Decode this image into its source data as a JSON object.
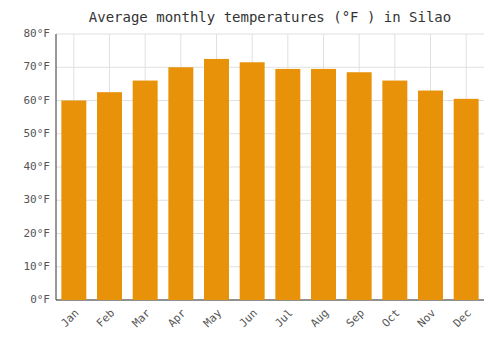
{
  "chart_data": {
    "type": "bar",
    "title": "Average monthly temperatures (°F ) in Silao",
    "categories": [
      "Jan",
      "Feb",
      "Mar",
      "Apr",
      "May",
      "Jun",
      "Jul",
      "Aug",
      "Sep",
      "Oct",
      "Nov",
      "Dec"
    ],
    "values": [
      60,
      62.5,
      66,
      70,
      72.5,
      71.5,
      69.5,
      69.5,
      68.5,
      66,
      63,
      60.5
    ],
    "color": "#E8920A",
    "ylim": [
      0,
      80
    ],
    "yticks": [
      {
        "value": 0,
        "label": "0°F"
      },
      {
        "value": 10,
        "label": "10°F"
      },
      {
        "value": 20,
        "label": "20°F"
      },
      {
        "value": 30,
        "label": "30°F"
      },
      {
        "value": 40,
        "label": "40°F"
      },
      {
        "value": 50,
        "label": "50°F"
      },
      {
        "value": 60,
        "label": "60°F"
      },
      {
        "value": 70,
        "label": "70°F"
      },
      {
        "value": 80,
        "label": "80°F"
      }
    ],
    "grid": true
  }
}
